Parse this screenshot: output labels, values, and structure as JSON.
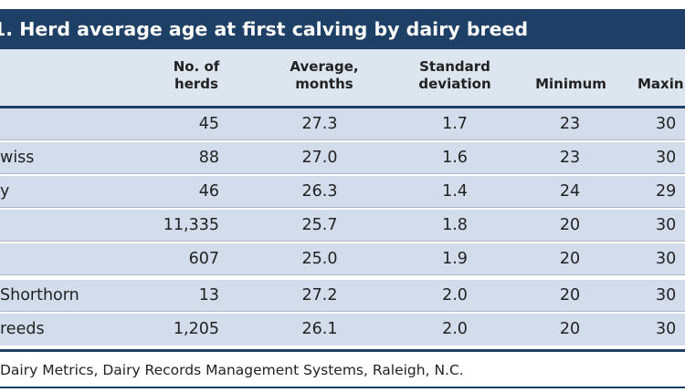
{
  "title": "1. Herd average age at first calving by dairy breed",
  "headers": {
    "herds": [
      "No. of",
      "herds"
    ],
    "average": [
      "Average,",
      "months"
    ],
    "sd": [
      "Standard",
      "deviation"
    ],
    "min": [
      "Minimum"
    ],
    "max": [
      "Maxin"
    ]
  },
  "rows": [
    {
      "breed": "",
      "herds": "45",
      "average": "27.3",
      "sd": "1.7",
      "min": "23",
      "max": "30"
    },
    {
      "breed": "wiss",
      "herds": "88",
      "average": "27.0",
      "sd": "1.6",
      "min": "23",
      "max": "30"
    },
    {
      "breed": "y",
      "herds": "46",
      "average": "26.3",
      "sd": "1.4",
      "min": "24",
      "max": "29"
    },
    {
      "breed": "",
      "herds": "11,335",
      "average": "25.7",
      "sd": "1.8",
      "min": "20",
      "max": "30"
    },
    {
      "breed": "",
      "herds": "607",
      "average": "25.0",
      "sd": "1.9",
      "min": "20",
      "max": "30"
    },
    {
      "breed": "Shorthorn",
      "herds": "13",
      "average": "27.2",
      "sd": "2.0",
      "min": "20",
      "max": "30"
    },
    {
      "breed": "reeds",
      "herds": "1,205",
      "average": "26.1",
      "sd": "2.0",
      "min": "20",
      "max": "30"
    }
  ],
  "source": "Dairy Metrics, Dairy Records Management Systems, Raleigh, N.C.",
  "colors": {
    "title_bg": "#1e3f66",
    "table_bg": "#dde5ef",
    "row_alt_bg": "#d3dceb",
    "rule": "#1e3f66"
  }
}
